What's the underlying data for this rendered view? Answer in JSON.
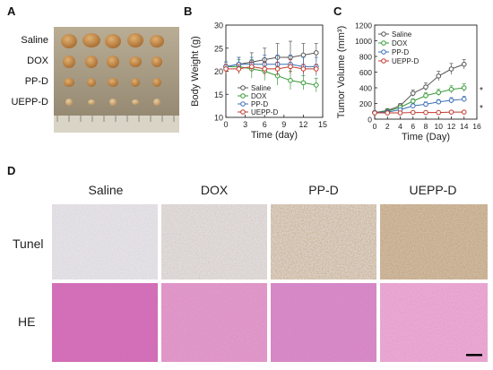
{
  "panels": {
    "a": {
      "letter": "A",
      "groups": [
        "Saline",
        "DOX",
        "PP-D",
        "UEPP-D"
      ]
    },
    "b": {
      "letter": "B"
    },
    "c": {
      "letter": "C"
    },
    "d": {
      "letter": "D",
      "columns": [
        "Saline",
        "DOX",
        "PP-D",
        "UEPP-D"
      ],
      "rows": [
        "Tunel",
        "HE"
      ]
    }
  },
  "chart_data": [
    {
      "type": "line",
      "xlabel": "Time (day)",
      "ylabel": "Body Weight (g)",
      "xlim": [
        0,
        15
      ],
      "ylim": [
        10,
        30
      ],
      "xticks": [
        0,
        3,
        6,
        9,
        12,
        15
      ],
      "yticks": [
        10,
        15,
        20,
        25,
        30
      ],
      "legend_position": "bottom-center",
      "series": [
        {
          "name": "Saline",
          "color": "#555555",
          "x": [
            0,
            2,
            4,
            6,
            8,
            10,
            12,
            14
          ],
          "y": [
            21,
            21.5,
            22,
            22.5,
            23,
            23,
            23.5,
            24
          ],
          "err": [
            1,
            1.5,
            2,
            2.5,
            3,
            3.5,
            2.5,
            2
          ]
        },
        {
          "name": "DOX",
          "color": "#3a9a3a",
          "x": [
            0,
            2,
            4,
            6,
            8,
            10,
            12,
            14
          ],
          "y": [
            21,
            21,
            20.5,
            20,
            19,
            18,
            17.5,
            17
          ],
          "err": [
            1,
            1.5,
            2,
            2,
            2,
            2,
            1.5,
            1.5
          ]
        },
        {
          "name": "PP-D",
          "color": "#3b6fb6",
          "x": [
            0,
            2,
            4,
            6,
            8,
            10,
            12,
            14
          ],
          "y": [
            21,
            21.5,
            21.5,
            21.5,
            21.5,
            21.5,
            21,
            21
          ],
          "err": [
            1,
            1.5,
            1.5,
            2,
            2,
            2,
            2,
            2
          ]
        },
        {
          "name": "UEPP-D",
          "color": "#c0392b",
          "x": [
            0,
            2,
            4,
            6,
            8,
            10,
            12,
            14
          ],
          "y": [
            20.5,
            20.5,
            21,
            20.5,
            20.5,
            21,
            20.5,
            20.5
          ],
          "err": [
            1,
            1,
            1,
            1.5,
            1.5,
            1.5,
            1,
            1
          ]
        }
      ]
    },
    {
      "type": "line",
      "xlabel": "Time (Day)",
      "ylabel": "Tumor Volume (mm³)",
      "xlim": [
        0,
        16
      ],
      "ylim": [
        0,
        1200
      ],
      "xticks": [
        0,
        2,
        4,
        6,
        8,
        10,
        12,
        14,
        16
      ],
      "yticks": [
        0,
        200,
        400,
        600,
        800,
        1000,
        1200
      ],
      "legend_position": "top-left",
      "annotations": [
        "*",
        "*"
      ],
      "series": [
        {
          "name": "Saline",
          "color": "#555555",
          "x": [
            0,
            2,
            4,
            6,
            8,
            10,
            12,
            14
          ],
          "y": [
            85,
            110,
            170,
            330,
            410,
            550,
            640,
            700
          ],
          "err": [
            15,
            20,
            30,
            40,
            50,
            60,
            70,
            60
          ]
        },
        {
          "name": "DOX",
          "color": "#3a9a3a",
          "x": [
            0,
            2,
            4,
            6,
            8,
            10,
            12,
            14
          ],
          "y": [
            85,
            100,
            150,
            230,
            300,
            340,
            380,
            400
          ],
          "err": [
            15,
            15,
            25,
            30,
            35,
            40,
            45,
            50
          ]
        },
        {
          "name": "PP-D",
          "color": "#3b6fb6",
          "x": [
            0,
            2,
            4,
            6,
            8,
            10,
            12,
            14
          ],
          "y": [
            85,
            90,
            120,
            170,
            190,
            220,
            240,
            255
          ],
          "err": [
            15,
            15,
            20,
            25,
            30,
            30,
            35,
            35
          ]
        },
        {
          "name": "UEPP-D",
          "color": "#c0392b",
          "x": [
            0,
            2,
            4,
            6,
            8,
            10,
            12,
            14
          ],
          "y": [
            80,
            80,
            80,
            85,
            85,
            85,
            90,
            90
          ],
          "err": [
            10,
            10,
            10,
            10,
            10,
            10,
            10,
            10
          ]
        }
      ]
    }
  ],
  "colors": {
    "tunel_bg": "#e6e4e8",
    "he_bg": "#e38fc0",
    "tumor": "#c8924a",
    "tray": "#a79a82"
  },
  "icons": {
    "scale_bar": "scale-bar"
  }
}
